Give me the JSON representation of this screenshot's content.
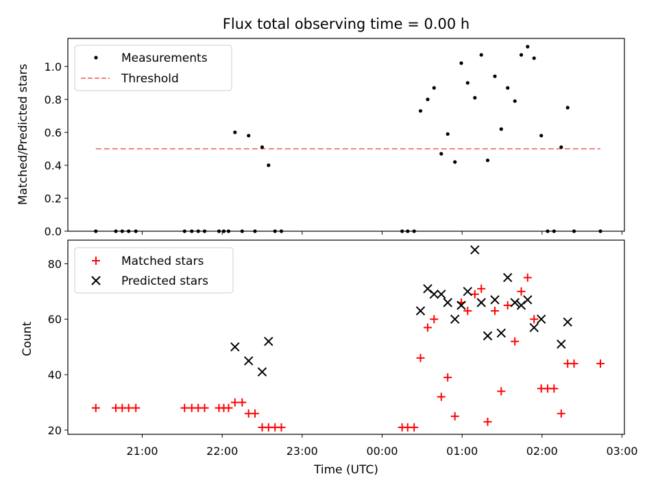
{
  "chart_data": [
    {
      "type": "scatter",
      "title": "Flux total observing time = 0.00 h",
      "ylabel": "Matched/Predicted stars",
      "xlabel": "",
      "x_unit": "hours (UTC, continuing past midnight)",
      "xlim": [
        20.07,
        27.03
      ],
      "ylim": [
        0.0,
        1.17
      ],
      "yticks": [
        "0.0",
        "0.2",
        "0.4",
        "0.6",
        "0.8",
        "1.0"
      ],
      "grid": false,
      "legend_position": "upper left",
      "series": [
        {
          "name": "Measurements",
          "marker": "dot",
          "color": "#000000",
          "points": [
            [
              20.42,
              0.0
            ],
            [
              20.67,
              0.0
            ],
            [
              20.75,
              0.0
            ],
            [
              20.83,
              0.0
            ],
            [
              20.92,
              0.0
            ],
            [
              21.53,
              0.0
            ],
            [
              21.62,
              0.0
            ],
            [
              21.7,
              0.0
            ],
            [
              21.78,
              0.0
            ],
            [
              21.96,
              0.0
            ],
            [
              22.02,
              0.0
            ],
            [
              22.08,
              0.0
            ],
            [
              22.16,
              0.6
            ],
            [
              22.25,
              0.0
            ],
            [
              22.33,
              0.58
            ],
            [
              22.41,
              0.0
            ],
            [
              22.5,
              0.51
            ],
            [
              22.58,
              0.4
            ],
            [
              22.66,
              0.0
            ],
            [
              22.74,
              0.0
            ],
            [
              24.25,
              0.0
            ],
            [
              24.32,
              0.0
            ],
            [
              24.4,
              0.0
            ],
            [
              24.48,
              0.73
            ],
            [
              24.57,
              0.8
            ],
            [
              24.65,
              0.87
            ],
            [
              24.74,
              0.47
            ],
            [
              24.82,
              0.59
            ],
            [
              24.91,
              0.42
            ],
            [
              24.99,
              1.02
            ],
            [
              25.07,
              0.9
            ],
            [
              25.16,
              0.81
            ],
            [
              25.24,
              1.07
            ],
            [
              25.32,
              0.43
            ],
            [
              25.41,
              0.94
            ],
            [
              25.49,
              0.62
            ],
            [
              25.57,
              0.87
            ],
            [
              25.66,
              0.79
            ],
            [
              25.74,
              1.07
            ],
            [
              25.82,
              1.12
            ],
            [
              25.9,
              1.05
            ],
            [
              25.99,
              0.58
            ],
            [
              26.07,
              0.0
            ],
            [
              26.15,
              0.0
            ],
            [
              26.24,
              0.51
            ],
            [
              26.32,
              0.75
            ],
            [
              26.4,
              0.0
            ],
            [
              26.73,
              0.0
            ]
          ]
        },
        {
          "name": "Threshold",
          "marker": "dashed-line",
          "color": "#f08080",
          "points": [
            [
              20.42,
              0.5
            ],
            [
              26.73,
              0.5
            ]
          ]
        }
      ]
    },
    {
      "type": "scatter",
      "title": "",
      "ylabel": "Count",
      "xlabel": "Time (UTC)",
      "x_unit": "hours (UTC, continuing past midnight)",
      "xlim": [
        20.07,
        27.03
      ],
      "ylim": [
        18.5,
        88.5
      ],
      "xticks": [
        {
          "value": 21,
          "label": "21:00"
        },
        {
          "value": 22,
          "label": "22:00"
        },
        {
          "value": 23,
          "label": "23:00"
        },
        {
          "value": 24,
          "label": "00:00"
        },
        {
          "value": 25,
          "label": "01:00"
        },
        {
          "value": 26,
          "label": "02:00"
        },
        {
          "value": 27,
          "label": "03:00"
        }
      ],
      "yticks": [
        "20",
        "40",
        "60",
        "80"
      ],
      "grid": false,
      "legend_position": "upper left",
      "series": [
        {
          "name": "Matched stars",
          "marker": "plus",
          "color": "#ff0000",
          "points": [
            [
              20.42,
              28
            ],
            [
              20.67,
              28
            ],
            [
              20.75,
              28
            ],
            [
              20.83,
              28
            ],
            [
              20.92,
              28
            ],
            [
              21.53,
              28
            ],
            [
              21.62,
              28
            ],
            [
              21.7,
              28
            ],
            [
              21.78,
              28
            ],
            [
              21.96,
              28
            ],
            [
              22.02,
              28
            ],
            [
              22.08,
              28
            ],
            [
              22.16,
              30
            ],
            [
              22.25,
              30
            ],
            [
              22.33,
              26
            ],
            [
              22.41,
              26
            ],
            [
              22.5,
              21
            ],
            [
              22.58,
              21
            ],
            [
              22.66,
              21
            ],
            [
              22.74,
              21
            ],
            [
              24.25,
              21
            ],
            [
              24.32,
              21
            ],
            [
              24.4,
              21
            ],
            [
              24.48,
              46
            ],
            [
              24.57,
              57
            ],
            [
              24.65,
              60
            ],
            [
              24.74,
              32
            ],
            [
              24.82,
              39
            ],
            [
              24.91,
              25
            ],
            [
              24.99,
              66
            ],
            [
              25.07,
              63
            ],
            [
              25.16,
              69
            ],
            [
              25.24,
              71
            ],
            [
              25.32,
              23
            ],
            [
              25.41,
              63
            ],
            [
              25.49,
              34
            ],
            [
              25.57,
              65
            ],
            [
              25.66,
              52
            ],
            [
              25.74,
              70
            ],
            [
              25.82,
              75
            ],
            [
              25.9,
              60
            ],
            [
              25.99,
              35
            ],
            [
              26.07,
              35
            ],
            [
              26.15,
              35
            ],
            [
              26.24,
              26
            ],
            [
              26.32,
              44
            ],
            [
              26.4,
              44
            ],
            [
              26.73,
              44
            ]
          ]
        },
        {
          "name": "Predicted stars",
          "marker": "x",
          "color": "#000000",
          "points": [
            [
              22.16,
              50
            ],
            [
              22.33,
              45
            ],
            [
              22.5,
              41
            ],
            [
              22.58,
              52
            ],
            [
              24.48,
              63
            ],
            [
              24.57,
              71
            ],
            [
              24.65,
              69
            ],
            [
              24.74,
              69
            ],
            [
              24.82,
              66
            ],
            [
              24.91,
              60
            ],
            [
              24.99,
              65
            ],
            [
              25.07,
              70
            ],
            [
              25.16,
              85
            ],
            [
              25.24,
              66
            ],
            [
              25.32,
              54
            ],
            [
              25.41,
              67
            ],
            [
              25.49,
              55
            ],
            [
              25.57,
              75
            ],
            [
              25.66,
              66
            ],
            [
              25.74,
              65
            ],
            [
              25.82,
              67
            ],
            [
              25.9,
              57
            ],
            [
              25.99,
              60
            ],
            [
              26.24,
              51
            ],
            [
              26.32,
              59
            ]
          ]
        }
      ]
    }
  ]
}
